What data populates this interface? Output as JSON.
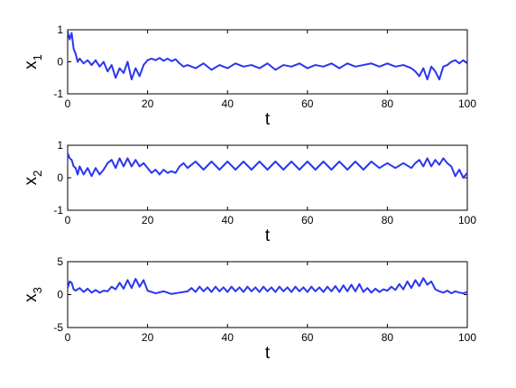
{
  "chart_data": [
    {
      "type": "line",
      "ylabel": "x",
      "ylabel_sub": "1",
      "xlabel": "t",
      "xlim": [
        0,
        100
      ],
      "ylim": [
        -1,
        1
      ],
      "xticks": [
        "0",
        "20",
        "40",
        "60",
        "80",
        "100"
      ],
      "yticks": [
        "1",
        "0",
        "-1"
      ],
      "grid": false,
      "color": "#2a36ee",
      "series": [
        {
          "name": "",
          "x": [
            0,
            0.5,
            1,
            1.5,
            2,
            2.5,
            3,
            4,
            5,
            6,
            7,
            8,
            9,
            10,
            11,
            12,
            13,
            14,
            15,
            16,
            17,
            18,
            19,
            20,
            21,
            22,
            23,
            24,
            25,
            26,
            27,
            28,
            29,
            30,
            32,
            34,
            36,
            38,
            40,
            42,
            44,
            46,
            48,
            50,
            52,
            54,
            56,
            58,
            60,
            62,
            64,
            66,
            68,
            70,
            72,
            74,
            76,
            78,
            80,
            82,
            84,
            86,
            87,
            88,
            89,
            90,
            91,
            92,
            93,
            94,
            95,
            96,
            97,
            98,
            99,
            100
          ],
          "y": [
            0.95,
            0.7,
            0.9,
            0.4,
            0.25,
            0.0,
            0.1,
            -0.05,
            0.05,
            -0.1,
            0.05,
            -0.15,
            0.0,
            -0.3,
            -0.1,
            -0.5,
            -0.2,
            -0.35,
            0.0,
            -0.55,
            -0.2,
            -0.45,
            -0.1,
            0.05,
            0.1,
            0.05,
            0.12,
            0.03,
            0.1,
            0.02,
            0.08,
            -0.05,
            -0.15,
            -0.1,
            -0.2,
            -0.05,
            -0.25,
            -0.1,
            -0.2,
            -0.05,
            -0.15,
            -0.1,
            -0.2,
            -0.05,
            -0.25,
            -0.1,
            -0.15,
            -0.05,
            -0.2,
            -0.1,
            -0.15,
            -0.05,
            -0.2,
            -0.05,
            -0.15,
            -0.1,
            -0.05,
            -0.15,
            -0.05,
            -0.15,
            -0.1,
            -0.2,
            -0.3,
            -0.45,
            -0.2,
            -0.55,
            -0.15,
            -0.3,
            -0.55,
            -0.15,
            -0.1,
            0.0,
            0.05,
            -0.05,
            0.05,
            -0.05
          ]
        }
      ]
    },
    {
      "type": "line",
      "ylabel": "x",
      "ylabel_sub": "2",
      "xlabel": "t",
      "xlim": [
        0,
        100
      ],
      "ylim": [
        -1,
        1
      ],
      "xticks": [
        "0",
        "20",
        "40",
        "60",
        "80",
        "100"
      ],
      "yticks": [
        "1",
        "0",
        "-1"
      ],
      "grid": false,
      "color": "#2a36ee",
      "series": [
        {
          "name": "",
          "x": [
            0,
            0.5,
            1,
            1.5,
            2,
            2.5,
            3,
            4,
            5,
            6,
            7,
            8,
            9,
            10,
            11,
            12,
            13,
            14,
            15,
            16,
            17,
            18,
            19,
            20,
            21,
            22,
            23,
            24,
            25,
            26,
            27,
            28,
            29,
            30,
            32,
            34,
            36,
            38,
            40,
            42,
            44,
            46,
            48,
            50,
            52,
            54,
            56,
            58,
            60,
            62,
            64,
            66,
            68,
            70,
            72,
            74,
            76,
            78,
            80,
            82,
            84,
            86,
            87,
            88,
            89,
            90,
            91,
            92,
            93,
            94,
            95,
            96,
            97,
            98,
            99,
            100
          ],
          "y": [
            0.75,
            0.6,
            0.55,
            0.35,
            0.3,
            0.1,
            0.35,
            0.1,
            0.3,
            0.05,
            0.3,
            0.1,
            0.25,
            0.45,
            0.55,
            0.3,
            0.6,
            0.35,
            0.6,
            0.35,
            0.55,
            0.35,
            0.45,
            0.3,
            0.15,
            0.25,
            0.1,
            0.25,
            0.15,
            0.2,
            0.15,
            0.35,
            0.45,
            0.3,
            0.5,
            0.25,
            0.5,
            0.25,
            0.5,
            0.25,
            0.5,
            0.25,
            0.5,
            0.25,
            0.5,
            0.25,
            0.5,
            0.25,
            0.5,
            0.25,
            0.5,
            0.25,
            0.5,
            0.25,
            0.5,
            0.25,
            0.5,
            0.3,
            0.45,
            0.3,
            0.45,
            0.3,
            0.45,
            0.55,
            0.35,
            0.6,
            0.35,
            0.55,
            0.4,
            0.6,
            0.45,
            0.35,
            0.05,
            0.25,
            0.0,
            0.15
          ]
        }
      ]
    },
    {
      "type": "line",
      "ylabel": "x",
      "ylabel_sub": "3",
      "xlabel": "t",
      "xlim": [
        0,
        100
      ],
      "ylim": [
        -5,
        5
      ],
      "xticks": [
        "0",
        "20",
        "40",
        "60",
        "80",
        "100"
      ],
      "yticks": [
        "5",
        "0",
        "-5"
      ],
      "grid": false,
      "color": "#2a36ee",
      "series": [
        {
          "name": "",
          "x": [
            0,
            0.5,
            1,
            1.5,
            2,
            3,
            4,
            5,
            6,
            7,
            8,
            9,
            10,
            11,
            12,
            13,
            14,
            15,
            16,
            17,
            18,
            19,
            20,
            21,
            22,
            24,
            26,
            28,
            30,
            31,
            32,
            33,
            34,
            35,
            36,
            37,
            38,
            39,
            40,
            41,
            42,
            43,
            44,
            45,
            46,
            47,
            48,
            49,
            50,
            51,
            52,
            53,
            54,
            55,
            56,
            57,
            58,
            59,
            60,
            61,
            62,
            63,
            64,
            65,
            66,
            67,
            68,
            69,
            70,
            71,
            72,
            73,
            74,
            75,
            76,
            77,
            78,
            79,
            80,
            81,
            82,
            83,
            84,
            85,
            86,
            87,
            88,
            89,
            90,
            91,
            92,
            93,
            94,
            95,
            96,
            97,
            98,
            99,
            100
          ],
          "y": [
            1.0,
            2.0,
            1.8,
            0.8,
            0.6,
            1.0,
            0.4,
            0.9,
            0.3,
            0.7,
            0.3,
            0.6,
            0.5,
            1.2,
            0.8,
            1.8,
            0.9,
            2.2,
            1.0,
            2.4,
            1.2,
            2.2,
            0.6,
            0.4,
            0.2,
            0.5,
            0.1,
            0.3,
            0.5,
            1.0,
            0.4,
            1.2,
            0.5,
            1.1,
            0.4,
            1.2,
            0.5,
            1.1,
            0.4,
            1.2,
            0.5,
            1.1,
            0.4,
            1.2,
            0.5,
            1.1,
            0.4,
            1.2,
            0.5,
            1.1,
            0.4,
            1.2,
            0.5,
            1.1,
            0.4,
            1.2,
            0.5,
            1.1,
            0.4,
            1.2,
            0.5,
            1.1,
            0.4,
            1.2,
            0.5,
            1.3,
            0.4,
            1.4,
            0.5,
            1.5,
            0.5,
            1.6,
            0.4,
            1.0,
            0.3,
            0.9,
            0.4,
            0.8,
            0.6,
            1.2,
            0.7,
            1.6,
            0.8,
            2.0,
            1.0,
            2.2,
            1.3,
            2.5,
            1.5,
            2.0,
            0.8,
            0.5,
            0.3,
            0.6,
            0.2,
            0.5,
            0.3,
            0.2,
            0.4
          ]
        }
      ]
    }
  ]
}
